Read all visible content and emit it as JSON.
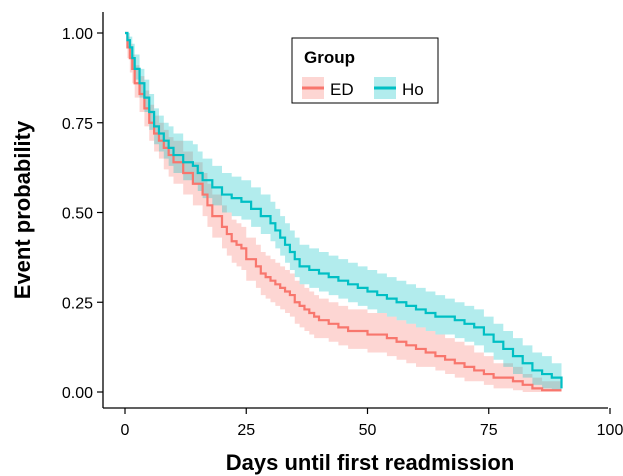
{
  "chart_data": {
    "type": "line",
    "xlabel": "Days until first readmission",
    "ylabel": "Event probability",
    "xlim": [
      0,
      100
    ],
    "ylim": [
      0,
      1
    ],
    "x_ticks": [
      0,
      25,
      50,
      75,
      100
    ],
    "x_tick_labels": [
      "0",
      "25",
      "50",
      "75",
      "100"
    ],
    "y_ticks": [
      0,
      0.25,
      0.5,
      0.75,
      1
    ],
    "y_tick_labels": [
      "0.00",
      "0.25",
      "0.50",
      "0.75",
      "1.00"
    ],
    "grid": false,
    "legend": {
      "title": "Group",
      "position": "top-center"
    },
    "series": [
      {
        "name": "ED",
        "color": "#F8766D",
        "step": true,
        "x": [
          0,
          0.5,
          1,
          1.5,
          2,
          3,
          4,
          5,
          6,
          7,
          8,
          9,
          10,
          12,
          14,
          16,
          17,
          18,
          20,
          21,
          22,
          23,
          24,
          25,
          27,
          28,
          29,
          30,
          31,
          32,
          33,
          34,
          35,
          36,
          37,
          38,
          39,
          40,
          42,
          44,
          46,
          48,
          50,
          52,
          54,
          56,
          58,
          60,
          62,
          64,
          66,
          68,
          70,
          72,
          74,
          76,
          78,
          80,
          82,
          84,
          86,
          88,
          90
        ],
        "y": [
          1.0,
          0.96,
          0.93,
          0.9,
          0.86,
          0.83,
          0.79,
          0.75,
          0.72,
          0.7,
          0.68,
          0.66,
          0.64,
          0.61,
          0.58,
          0.55,
          0.52,
          0.49,
          0.46,
          0.44,
          0.42,
          0.41,
          0.4,
          0.37,
          0.35,
          0.33,
          0.32,
          0.31,
          0.3,
          0.29,
          0.28,
          0.27,
          0.25,
          0.24,
          0.23,
          0.22,
          0.21,
          0.2,
          0.19,
          0.18,
          0.17,
          0.17,
          0.16,
          0.16,
          0.15,
          0.14,
          0.13,
          0.12,
          0.11,
          0.1,
          0.09,
          0.08,
          0.07,
          0.06,
          0.05,
          0.04,
          0.04,
          0.03,
          0.02,
          0.01,
          0.005,
          0.005,
          0.005
        ],
        "lower": [
          1.0,
          0.93,
          0.89,
          0.86,
          0.82,
          0.78,
          0.74,
          0.7,
          0.67,
          0.65,
          0.62,
          0.6,
          0.58,
          0.55,
          0.52,
          0.49,
          0.46,
          0.43,
          0.4,
          0.38,
          0.36,
          0.35,
          0.34,
          0.31,
          0.29,
          0.27,
          0.26,
          0.25,
          0.24,
          0.23,
          0.22,
          0.21,
          0.19,
          0.18,
          0.17,
          0.16,
          0.15,
          0.15,
          0.14,
          0.13,
          0.12,
          0.12,
          0.11,
          0.11,
          0.1,
          0.09,
          0.08,
          0.07,
          0.07,
          0.06,
          0.05,
          0.04,
          0.03,
          0.03,
          0.02,
          0.01,
          0.01,
          0.005,
          0.0,
          0.0,
          0.0,
          0.0,
          0.0
        ],
        "upper": [
          1.0,
          0.99,
          0.97,
          0.94,
          0.91,
          0.88,
          0.84,
          0.8,
          0.77,
          0.75,
          0.73,
          0.71,
          0.7,
          0.67,
          0.64,
          0.61,
          0.58,
          0.55,
          0.52,
          0.5,
          0.48,
          0.47,
          0.46,
          0.43,
          0.41,
          0.39,
          0.38,
          0.37,
          0.36,
          0.35,
          0.34,
          0.33,
          0.31,
          0.3,
          0.29,
          0.28,
          0.27,
          0.26,
          0.25,
          0.24,
          0.23,
          0.23,
          0.22,
          0.22,
          0.21,
          0.2,
          0.19,
          0.18,
          0.17,
          0.16,
          0.15,
          0.14,
          0.13,
          0.11,
          0.1,
          0.08,
          0.08,
          0.07,
          0.05,
          0.04,
          0.03,
          0.03,
          0.03
        ]
      },
      {
        "name": "Ho",
        "color": "#00BFC4",
        "step": true,
        "x": [
          0,
          0.5,
          1,
          1.5,
          2,
          3,
          4,
          5,
          6,
          7,
          8,
          9,
          10,
          12,
          14,
          15,
          16,
          18,
          20,
          22,
          24,
          26,
          28,
          30,
          31,
          32,
          33,
          34,
          35,
          36,
          38,
          40,
          42,
          44,
          46,
          48,
          50,
          52,
          54,
          56,
          58,
          60,
          62,
          64,
          66,
          68,
          70,
          72,
          74,
          76,
          78,
          80,
          82,
          84,
          86,
          88,
          90
        ],
        "y": [
          1.0,
          0.98,
          0.96,
          0.93,
          0.9,
          0.86,
          0.82,
          0.78,
          0.74,
          0.72,
          0.7,
          0.68,
          0.66,
          0.64,
          0.63,
          0.61,
          0.59,
          0.57,
          0.55,
          0.54,
          0.53,
          0.51,
          0.49,
          0.47,
          0.45,
          0.43,
          0.41,
          0.39,
          0.37,
          0.35,
          0.34,
          0.33,
          0.32,
          0.31,
          0.3,
          0.29,
          0.28,
          0.27,
          0.26,
          0.25,
          0.24,
          0.23,
          0.22,
          0.21,
          0.21,
          0.2,
          0.19,
          0.18,
          0.16,
          0.14,
          0.12,
          0.1,
          0.08,
          0.06,
          0.05,
          0.04,
          0.01
        ],
        "lower": [
          1.0,
          0.96,
          0.93,
          0.9,
          0.87,
          0.82,
          0.78,
          0.73,
          0.69,
          0.67,
          0.65,
          0.63,
          0.61,
          0.59,
          0.58,
          0.56,
          0.54,
          0.52,
          0.5,
          0.49,
          0.48,
          0.46,
          0.44,
          0.42,
          0.4,
          0.38,
          0.36,
          0.34,
          0.32,
          0.3,
          0.29,
          0.28,
          0.27,
          0.26,
          0.25,
          0.24,
          0.23,
          0.22,
          0.21,
          0.2,
          0.19,
          0.18,
          0.17,
          0.16,
          0.16,
          0.15,
          0.14,
          0.13,
          0.11,
          0.09,
          0.07,
          0.05,
          0.04,
          0.02,
          0.01,
          0.005,
          0.0
        ],
        "upper": [
          1.0,
          1.0,
          0.99,
          0.97,
          0.94,
          0.9,
          0.87,
          0.83,
          0.79,
          0.77,
          0.75,
          0.74,
          0.72,
          0.7,
          0.69,
          0.67,
          0.65,
          0.63,
          0.61,
          0.6,
          0.59,
          0.57,
          0.55,
          0.53,
          0.51,
          0.49,
          0.47,
          0.45,
          0.43,
          0.41,
          0.4,
          0.39,
          0.38,
          0.37,
          0.36,
          0.35,
          0.34,
          0.33,
          0.32,
          0.31,
          0.3,
          0.29,
          0.28,
          0.27,
          0.26,
          0.25,
          0.24,
          0.23,
          0.21,
          0.19,
          0.17,
          0.15,
          0.13,
          0.11,
          0.1,
          0.08,
          0.04
        ]
      }
    ]
  }
}
